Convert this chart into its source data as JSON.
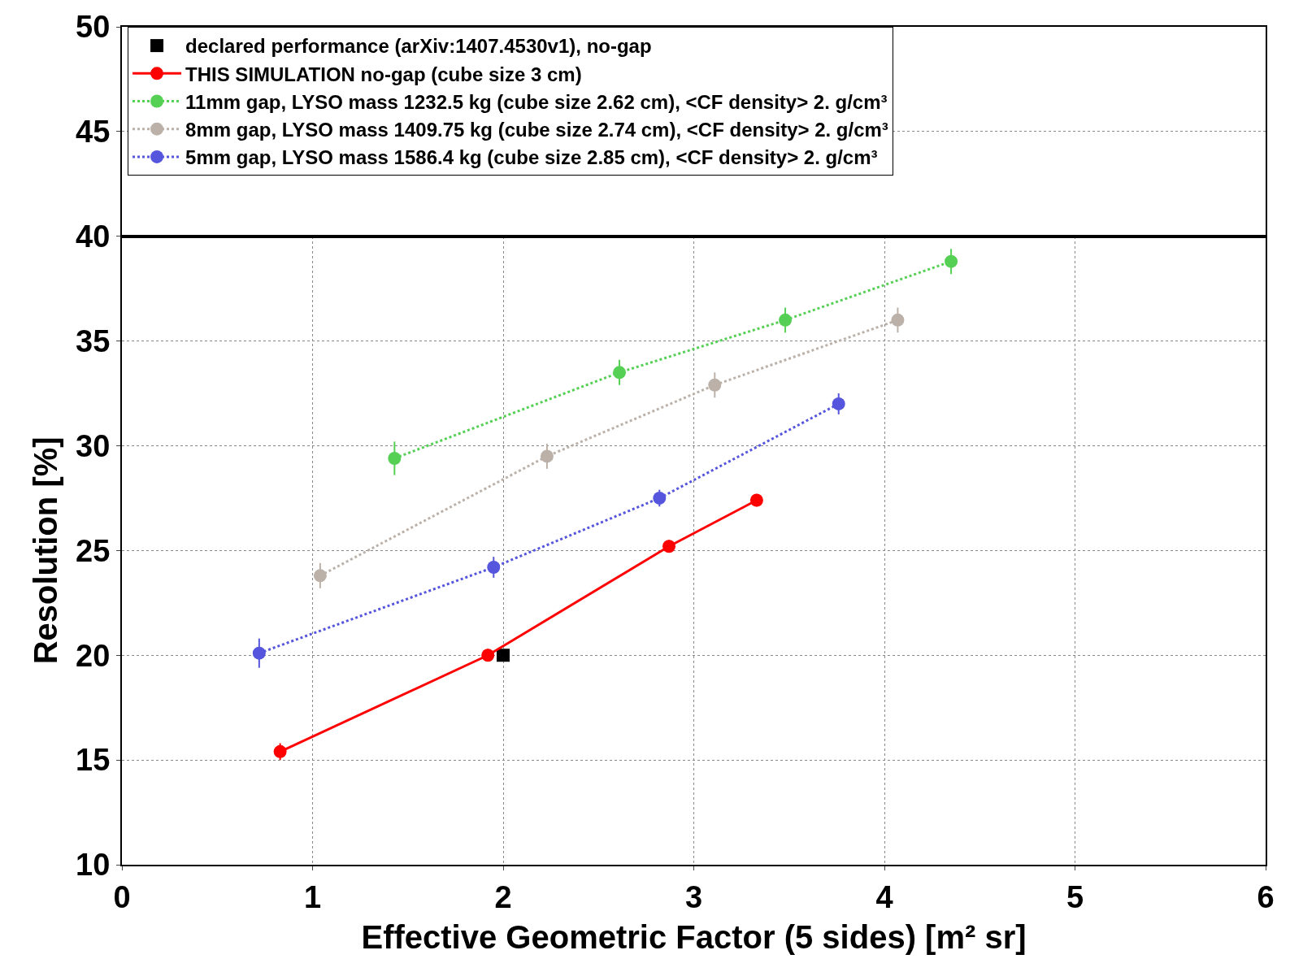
{
  "chart_data": {
    "type": "scatter",
    "xlabel": "Effective Geometric Factor (5 sides) [m² sr]",
    "ylabel": "Resolution [%]",
    "xlim": [
      0,
      6
    ],
    "xticks": [
      0,
      1,
      2,
      3,
      4,
      5,
      6
    ],
    "ylim": [
      10,
      50
    ],
    "yticks": [
      10,
      15,
      20,
      25,
      30,
      35,
      40,
      45,
      50
    ],
    "grid": true,
    "legend": "top",
    "series": [
      {
        "name": "declared performance (arXiv:1407.4530v1), no-gap",
        "type": "scatter",
        "marker": "square",
        "color": "#000000",
        "x": [
          2.0
        ],
        "values": [
          20.0
        ]
      },
      {
        "name": "THIS SIMULATION no-gap (cube size 3 cm)",
        "type": "line",
        "marker": "circle",
        "line_style": "solid",
        "color": "#ff0000",
        "x": [
          0.83,
          1.92,
          2.87,
          3.33
        ],
        "values": [
          15.4,
          20.0,
          25.2,
          27.4
        ],
        "errors": [
          0.4,
          0.3,
          0.3,
          0.3
        ]
      },
      {
        "name": "11mm gap, LYSO mass 1232.5 kg (cube size 2.62 cm), <CF density> 2. g/cm³",
        "type": "line",
        "marker": "circle",
        "line_style": "dotted",
        "color": "#55d055",
        "x": [
          1.43,
          2.61,
          3.48,
          4.35
        ],
        "values": [
          29.4,
          33.5,
          36.0,
          38.8
        ],
        "errors": [
          0.8,
          0.6,
          0.6,
          0.6
        ]
      },
      {
        "name": "8mm gap, LYSO mass 1409.75 kg (cube size 2.74 cm), <CF density> 2. g/cm³",
        "type": "line",
        "marker": "circle",
        "line_style": "dotted",
        "color": "#bbb1a8",
        "x": [
          1.04,
          2.23,
          3.11,
          4.07
        ],
        "values": [
          23.8,
          29.5,
          32.9,
          36.0
        ],
        "errors": [
          0.6,
          0.6,
          0.6,
          0.6
        ]
      },
      {
        "name": "5mm gap, LYSO mass 1586.4 kg (cube size 2.85 cm), <CF density> 2. g/cm³",
        "type": "line",
        "marker": "circle",
        "line_style": "dotted",
        "color": "#5555dd",
        "x": [
          0.72,
          1.95,
          2.82,
          3.76
        ],
        "values": [
          20.1,
          24.2,
          27.5,
          32.0
        ],
        "errors": [
          0.7,
          0.5,
          0.4,
          0.5
        ]
      }
    ]
  }
}
